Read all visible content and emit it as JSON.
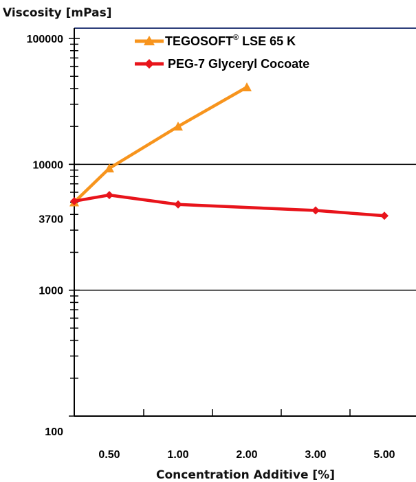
{
  "chart_data": {
    "type": "line",
    "title": "",
    "ylabel": "Viscosity  [mPas]",
    "xlabel": "Concentration Additive [%]",
    "y_scale": "log",
    "ylim": [
      100,
      100000
    ],
    "y_tick_labels": [
      {
        "value": 100000,
        "label": "100000"
      },
      {
        "value": 10000,
        "label": "10000"
      },
      {
        "value": 3700,
        "label": "3700"
      },
      {
        "value": 1000,
        "label": "1000"
      },
      {
        "value": 100,
        "label": "100"
      }
    ],
    "x": [
      0,
      0.5,
      1.0,
      2.0,
      3.0,
      5.0
    ],
    "x_tick_labels": [
      "0.50",
      "1.00",
      "2.00",
      "3.00",
      "5.00"
    ],
    "horizontal_gridlines": [
      10000,
      1000
    ],
    "legend": {
      "placement": "top-center"
    },
    "series": [
      {
        "name": "TEGOSOFT",
        "name_superscript": "®",
        "name_suffix": " LSE 65 K",
        "color": "#F7941D",
        "marker": "triangle",
        "x": [
          0,
          0.5,
          1.0,
          2.0
        ],
        "values": [
          5000,
          9300,
          20000,
          41000
        ]
      },
      {
        "name": "PEG-7 Glyceryl Cocoate",
        "color": "#E8141B",
        "marker": "diamond",
        "x": [
          0,
          0.5,
          1.0,
          3.0,
          5.0
        ],
        "values": [
          5100,
          5700,
          4800,
          4300,
          3900
        ]
      }
    ]
  }
}
